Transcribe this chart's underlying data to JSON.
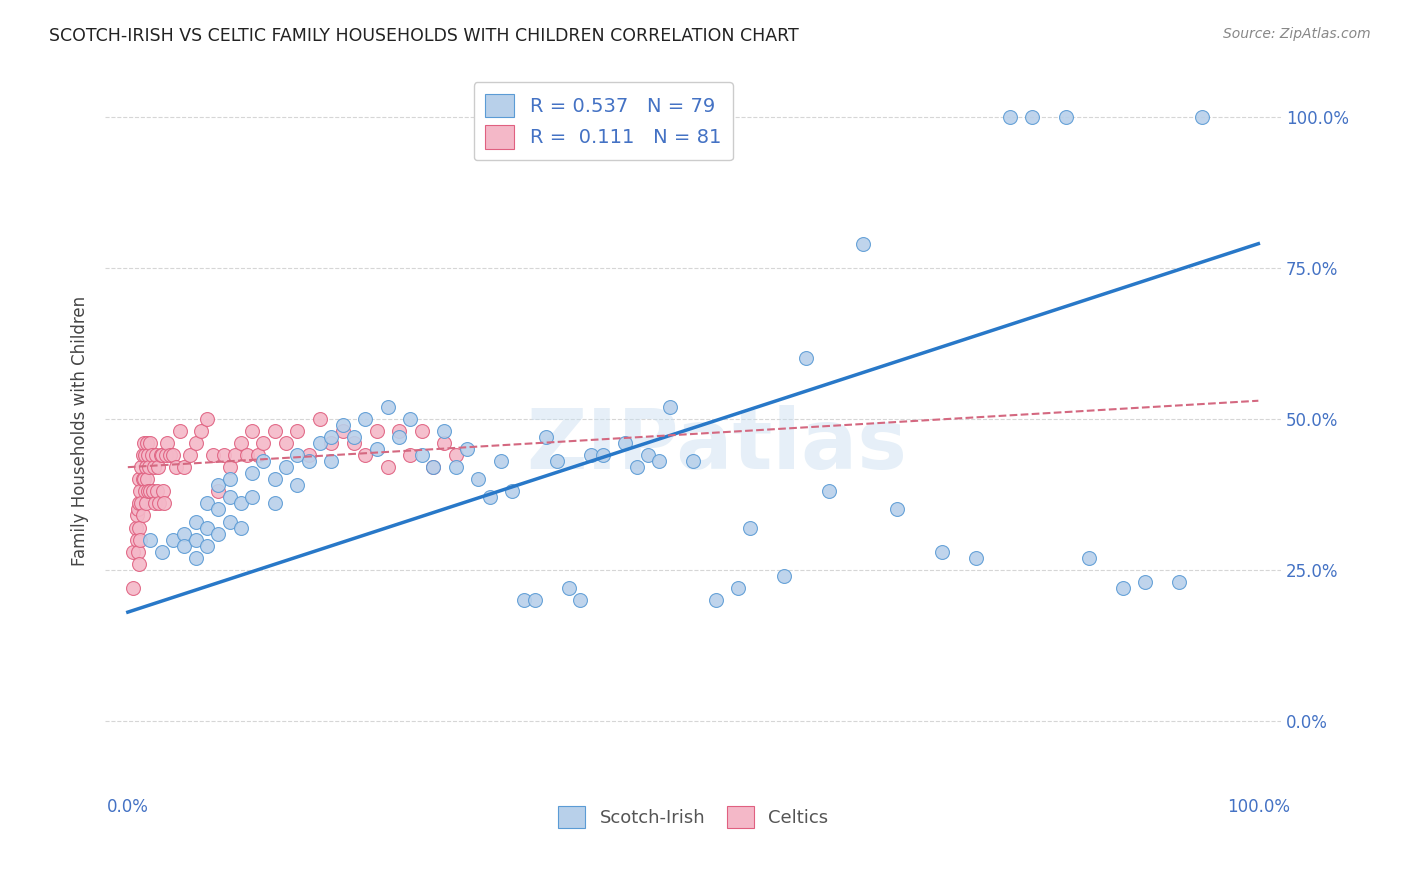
{
  "title": "SCOTCH-IRISH VS CELTIC FAMILY HOUSEHOLDS WITH CHILDREN CORRELATION CHART",
  "source": "Source: ZipAtlas.com",
  "ylabel": "Family Households with Children",
  "watermark": "ZIPatlas",
  "scotch_irish_color": "#b8d0ea",
  "scotch_irish_edge_color": "#5b9bd5",
  "celtics_color": "#f4b8c8",
  "celtics_edge_color": "#e06080",
  "scotch_irish_line_color": "#2878c8",
  "celtics_line_color": "#d46880",
  "background_color": "#ffffff",
  "grid_color": "#cccccc",
  "tick_color": "#4472c4",
  "title_color": "#222222",
  "source_color": "#888888",
  "legend1_text": "R = 0.537   N = 79",
  "legend2_text": "R =  0.111   N = 81",
  "ytick_values": [
    0.0,
    0.25,
    0.5,
    0.75,
    1.0
  ],
  "ytick_labels": [
    "0.0%",
    "25.0%",
    "50.0%",
    "75.0%",
    "100.0%"
  ],
  "xtick_values": [
    0.0,
    1.0
  ],
  "xtick_labels": [
    "0.0%",
    "100.0%"
  ],
  "xlim": [
    -0.02,
    1.02
  ],
  "ylim": [
    -0.12,
    1.08
  ],
  "si_line_x0": 0.0,
  "si_line_y0": 0.18,
  "si_line_x1": 1.0,
  "si_line_y1": 0.79,
  "ce_line_x0": 0.0,
  "ce_line_y0": 0.42,
  "ce_line_x1": 1.0,
  "ce_line_y1": 0.53,
  "scotch_irish_x": [
    0.02,
    0.03,
    0.04,
    0.05,
    0.05,
    0.06,
    0.06,
    0.06,
    0.07,
    0.07,
    0.07,
    0.08,
    0.08,
    0.08,
    0.09,
    0.09,
    0.09,
    0.1,
    0.1,
    0.11,
    0.11,
    0.12,
    0.13,
    0.13,
    0.14,
    0.15,
    0.15,
    0.16,
    0.17,
    0.18,
    0.18,
    0.19,
    0.2,
    0.21,
    0.22,
    0.23,
    0.24,
    0.25,
    0.26,
    0.27,
    0.28,
    0.29,
    0.3,
    0.31,
    0.32,
    0.33,
    0.34,
    0.35,
    0.36,
    0.37,
    0.38,
    0.39,
    0.4,
    0.41,
    0.42,
    0.44,
    0.45,
    0.46,
    0.47,
    0.48,
    0.5,
    0.52,
    0.54,
    0.55,
    0.58,
    0.6,
    0.62,
    0.65,
    0.68,
    0.72,
    0.75,
    0.78,
    0.8,
    0.83,
    0.85,
    0.88,
    0.9,
    0.93,
    0.95
  ],
  "scotch_irish_y": [
    0.3,
    0.28,
    0.3,
    0.31,
    0.29,
    0.33,
    0.3,
    0.27,
    0.36,
    0.32,
    0.29,
    0.39,
    0.35,
    0.31,
    0.4,
    0.37,
    0.33,
    0.36,
    0.32,
    0.41,
    0.37,
    0.43,
    0.4,
    0.36,
    0.42,
    0.44,
    0.39,
    0.43,
    0.46,
    0.47,
    0.43,
    0.49,
    0.47,
    0.5,
    0.45,
    0.52,
    0.47,
    0.5,
    0.44,
    0.42,
    0.48,
    0.42,
    0.45,
    0.4,
    0.37,
    0.43,
    0.38,
    0.2,
    0.2,
    0.47,
    0.43,
    0.22,
    0.2,
    0.44,
    0.44,
    0.46,
    0.42,
    0.44,
    0.43,
    0.52,
    0.43,
    0.2,
    0.22,
    0.32,
    0.24,
    0.6,
    0.38,
    0.79,
    0.35,
    0.28,
    0.27,
    1.0,
    1.0,
    1.0,
    0.27,
    0.22,
    0.23,
    0.23,
    1.0
  ],
  "celtics_x": [
    0.005,
    0.005,
    0.007,
    0.008,
    0.008,
    0.009,
    0.009,
    0.01,
    0.01,
    0.01,
    0.01,
    0.011,
    0.011,
    0.012,
    0.012,
    0.013,
    0.013,
    0.013,
    0.014,
    0.014,
    0.015,
    0.015,
    0.016,
    0.016,
    0.017,
    0.017,
    0.018,
    0.018,
    0.019,
    0.02,
    0.02,
    0.021,
    0.022,
    0.023,
    0.024,
    0.025,
    0.026,
    0.027,
    0.028,
    0.029,
    0.03,
    0.031,
    0.032,
    0.034,
    0.035,
    0.037,
    0.04,
    0.043,
    0.046,
    0.05,
    0.055,
    0.06,
    0.065,
    0.07,
    0.075,
    0.08,
    0.085,
    0.09,
    0.095,
    0.1,
    0.105,
    0.11,
    0.115,
    0.12,
    0.13,
    0.14,
    0.15,
    0.16,
    0.17,
    0.18,
    0.19,
    0.2,
    0.21,
    0.22,
    0.23,
    0.24,
    0.25,
    0.26,
    0.27,
    0.28,
    0.29
  ],
  "celtics_y": [
    0.28,
    0.22,
    0.32,
    0.34,
    0.3,
    0.35,
    0.28,
    0.4,
    0.36,
    0.32,
    0.26,
    0.38,
    0.3,
    0.42,
    0.36,
    0.44,
    0.4,
    0.34,
    0.46,
    0.4,
    0.44,
    0.38,
    0.42,
    0.36,
    0.46,
    0.4,
    0.44,
    0.38,
    0.42,
    0.46,
    0.38,
    0.44,
    0.38,
    0.42,
    0.36,
    0.44,
    0.38,
    0.42,
    0.36,
    0.44,
    0.44,
    0.38,
    0.36,
    0.44,
    0.46,
    0.44,
    0.44,
    0.42,
    0.48,
    0.42,
    0.44,
    0.46,
    0.48,
    0.5,
    0.44,
    0.38,
    0.44,
    0.42,
    0.44,
    0.46,
    0.44,
    0.48,
    0.44,
    0.46,
    0.48,
    0.46,
    0.48,
    0.44,
    0.5,
    0.46,
    0.48,
    0.46,
    0.44,
    0.48,
    0.42,
    0.48,
    0.44,
    0.48,
    0.42,
    0.46,
    0.44
  ]
}
